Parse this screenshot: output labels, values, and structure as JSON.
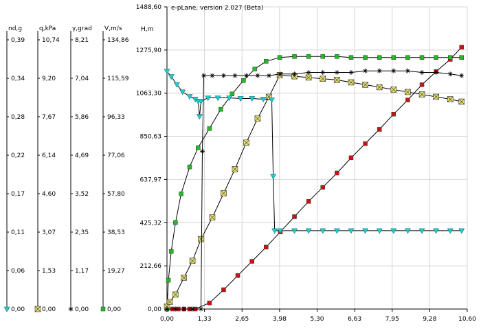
{
  "chart_data": {
    "type": "line",
    "title": "e-pLane, version 2.027 (Beta)",
    "main_axis": {
      "ylabel": "H,m",
      "x_ticks": [
        "0,00",
        "1,33",
        "2,65",
        "3,98",
        "5,30",
        "6,63",
        "7,95",
        "9,28",
        "10,60"
      ],
      "y_ticks": [
        "0,00",
        "212,66",
        "425,32",
        "637,97",
        "850,63",
        "1063,30",
        "1275,90",
        "1488,60"
      ],
      "xlim": [
        0,
        10.6
      ],
      "ylim": [
        0,
        1488.6
      ]
    },
    "side_axes": [
      {
        "label": "nd,g",
        "ticks": [
          "0,39",
          "0,34",
          "0,28",
          "0,22",
          "0,17",
          "0,11",
          "0,06",
          "0,00"
        ],
        "marker": "triangle",
        "color": "#22cccc"
      },
      {
        "label": "q,kPa",
        "ticks": [
          "10,74",
          "9,20",
          "7,67",
          "6,14",
          "4,60",
          "3,07",
          "1,53",
          "0,00"
        ],
        "marker": "square-x",
        "color": "#e8e070"
      },
      {
        "label": "γ,grad",
        "ticks": [
          "8,21",
          "7,04",
          "5,86",
          "4,69",
          "3,52",
          "2,35",
          "1,17",
          "0,00"
        ],
        "marker": "star",
        "color": "#000000"
      },
      {
        "label": "V,m/s",
        "ticks": [
          "134,86",
          "115,59",
          "96,33",
          "77,06",
          "57,80",
          "38,53",
          "19,27",
          "0,00"
        ],
        "marker": "square",
        "color": "#22bb22"
      }
    ],
    "series": [
      {
        "marker": "square",
        "color": "#cc1111",
        "scale": "H,m",
        "x": [
          0,
          0.2,
          0.4,
          0.6,
          0.8,
          1.0,
          1.5,
          2.0,
          2.5,
          3.0,
          3.5,
          4.0,
          4.5,
          5.0,
          5.5,
          6.0,
          6.5,
          7.0,
          7.5,
          8.0,
          8.5,
          9.0,
          9.5,
          10.0,
          10.4
        ],
        "y": [
          0,
          0,
          0,
          0,
          0,
          0,
          30,
          95,
          165,
          235,
          305,
          380,
          455,
          530,
          600,
          670,
          745,
          815,
          885,
          960,
          1030,
          1105,
          1170,
          1230,
          1290
        ]
      },
      {
        "marker": "square",
        "color": "#22bb22",
        "scale": "V,m/s",
        "x": [
          0,
          0.05,
          0.15,
          0.3,
          0.5,
          0.8,
          1.1,
          1.5,
          1.9,
          2.3,
          2.7,
          3.1,
          3.5,
          3.98,
          4.5,
          5.0,
          5.5,
          6.0,
          6.5,
          7.0,
          7.5,
          8.0,
          8.5,
          9.0,
          9.5,
          10.0,
          10.4
        ],
        "y": [
          0,
          15,
          30,
          45,
          60,
          74,
          84,
          94,
          104,
          112,
          119,
          125,
          129,
          131,
          131.5,
          131.5,
          131.5,
          131.5,
          131,
          131,
          131,
          131,
          131,
          131,
          131,
          131,
          131
        ]
      },
      {
        "marker": "square-x",
        "color": "#e8e070",
        "scale": "q,kPa",
        "x": [
          0,
          0.1,
          0.3,
          0.6,
          0.9,
          1.2,
          1.6,
          2.0,
          2.4,
          2.8,
          3.2,
          3.6,
          3.98,
          4.5,
          5.0,
          5.5,
          6.0,
          6.5,
          7.0,
          7.5,
          8.0,
          8.5,
          9.0,
          9.5,
          10.0,
          10.4
        ],
        "y": [
          0.1,
          0.3,
          0.6,
          1.3,
          2.0,
          2.9,
          3.8,
          4.8,
          5.8,
          6.9,
          7.9,
          8.8,
          9.7,
          9.65,
          9.6,
          9.55,
          9.5,
          9.4,
          9.3,
          9.2,
          9.1,
          9.0,
          8.9,
          8.8,
          8.7,
          8.6
        ]
      },
      {
        "marker": "star",
        "color": "#000000",
        "scale": "γ,grad",
        "x": [
          0,
          0.3,
          0.6,
          0.9,
          1.2,
          1.25,
          1.3,
          1.6,
          2.0,
          2.4,
          2.8,
          3.2,
          3.6,
          4.0,
          4.5,
          5.0,
          5.5,
          6.0,
          6.5,
          7.0,
          7.5,
          8.0,
          8.5,
          9.0,
          9.5,
          10.0,
          10.4
        ],
        "y": [
          0,
          0,
          0,
          0,
          0,
          5.0,
          7.4,
          7.4,
          7.4,
          7.4,
          7.4,
          7.4,
          7.4,
          7.45,
          7.45,
          7.5,
          7.5,
          7.5,
          7.5,
          7.55,
          7.55,
          7.55,
          7.55,
          7.5,
          7.5,
          7.45,
          7.4
        ]
      },
      {
        "marker": "triangle",
        "color": "#22cccc",
        "scale": "nd,g",
        "x": [
          0,
          0.15,
          0.35,
          0.55,
          0.8,
          1.0,
          1.1,
          1.15,
          1.2,
          1.45,
          1.8,
          2.2,
          2.6,
          3.0,
          3.4,
          3.7,
          3.75,
          3.8,
          4.0,
          4.5,
          5.0,
          5.5,
          6.0,
          6.5,
          7.0,
          7.5,
          8.0,
          8.5,
          9.0,
          9.5,
          10.0,
          10.4
        ],
        "y": [
          0.358,
          0.35,
          0.338,
          0.327,
          0.32,
          0.316,
          0.313,
          0.29,
          0.313,
          0.318,
          0.318,
          0.318,
          0.317,
          0.317,
          0.316,
          0.315,
          0.2,
          0.118,
          0.118,
          0.118,
          0.118,
          0.118,
          0.118,
          0.118,
          0.118,
          0.118,
          0.118,
          0.118,
          0.118,
          0.118,
          0.118,
          0.118
        ]
      }
    ],
    "grid": true,
    "legend": "bottom-left"
  }
}
